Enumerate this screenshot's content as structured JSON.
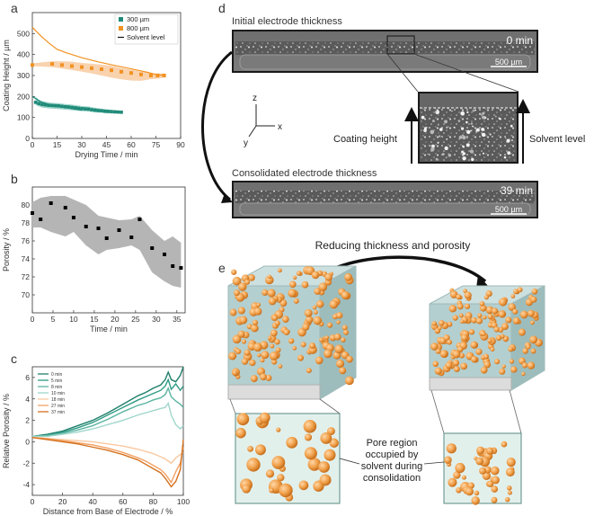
{
  "panels": {
    "a": "a",
    "b": "b",
    "c": "c",
    "d": "d",
    "e": "e"
  },
  "colors": {
    "teal": "#1f8a78",
    "orange": "#f29222",
    "orange_band": "#f7c79a",
    "teal_band": "#8fcfc4",
    "gray_band": "#b5b5b5",
    "sphere": "#f0a04a",
    "box_face": "#a9c9c9",
    "electrode_bg": "#8a8a8a",
    "frame": "#1a1a1a"
  },
  "chart_data": [
    {
      "id": "a",
      "type": "scatter",
      "xlabel": "Drying Time / min",
      "ylabel": "Coating Height / µm",
      "xlim": [
        0,
        90
      ],
      "ylim": [
        0,
        600
      ],
      "xticks": [
        0,
        15,
        30,
        45,
        60,
        75,
        90
      ],
      "yticks": [
        0,
        100,
        200,
        300,
        400,
        500
      ],
      "legend": [
        "300 µm",
        "800 µm",
        "Solvent level"
      ],
      "legend_position": "top-right",
      "series": [
        {
          "name": "300 µm",
          "marker": "square",
          "color": "#1f8a78",
          "x": [
            2,
            4,
            6,
            8,
            10,
            12,
            14,
            16,
            18,
            20,
            22,
            24,
            26,
            28,
            30,
            32,
            34,
            36,
            38,
            40,
            42,
            44,
            46,
            48,
            50,
            52,
            54
          ],
          "y": [
            172,
            166,
            162,
            160,
            158,
            157,
            156,
            155,
            153,
            151,
            150,
            148,
            146,
            144,
            142,
            141,
            140,
            137,
            135,
            133,
            132,
            130,
            129,
            128,
            127,
            126,
            125
          ],
          "band_lower": [
            160,
            152,
            147,
            145,
            143,
            142,
            141,
            140,
            139,
            137,
            136,
            134,
            133,
            131,
            130,
            129,
            128,
            126,
            124,
            123,
            122,
            120,
            119,
            119,
            118,
            118,
            118
          ],
          "band_upper": [
            200,
            185,
            178,
            175,
            172,
            170,
            169,
            168,
            166,
            164,
            163,
            161,
            159,
            157,
            155,
            153,
            152,
            149,
            147,
            144,
            142,
            140,
            138,
            136,
            134,
            133,
            132
          ]
        },
        {
          "name": "800 µm",
          "marker": "square",
          "color": "#f29222",
          "x": [
            0,
            12,
            18,
            24,
            30,
            36,
            42,
            48,
            54,
            60,
            66,
            72,
            76,
            80
          ],
          "y": [
            350,
            355,
            350,
            345,
            340,
            335,
            330,
            325,
            318,
            312,
            305,
            300,
            300,
            300
          ],
          "band_lower": [
            345,
            340,
            333,
            326,
            318,
            310,
            300,
            290,
            282,
            276,
            275,
            283,
            285,
            290
          ],
          "band_upper": [
            358,
            368,
            368,
            366,
            360,
            356,
            352,
            346,
            336,
            328,
            318,
            310,
            310,
            310
          ]
        },
        {
          "name": "Solvent level",
          "type": "line",
          "color": "#f29222",
          "x": [
            0,
            5,
            10,
            15,
            20,
            30,
            40,
            50,
            60,
            70,
            75,
            80
          ],
          "y": [
            530,
            490,
            455,
            425,
            410,
            385,
            365,
            348,
            332,
            315,
            305,
            300
          ]
        },
        {
          "name": "Solvent level 300",
          "type": "line",
          "color": "#1f8a78",
          "x": [
            0,
            5,
            10,
            15,
            20,
            25,
            30
          ],
          "y": [
            200,
            175,
            162,
            155,
            148,
            141,
            135
          ]
        }
      ]
    },
    {
      "id": "b",
      "type": "scatter",
      "xlabel": "Time / min",
      "ylabel": "Porosity / %",
      "xlim": [
        0,
        37
      ],
      "ylim": [
        68,
        82
      ],
      "xticks": [
        0,
        5,
        10,
        15,
        20,
        25,
        30,
        35
      ],
      "yticks": [
        70,
        72,
        74,
        76,
        78,
        80
      ],
      "series": [
        {
          "name": "Porosity",
          "marker": "square",
          "color": "#000000",
          "x": [
            0,
            2,
            4.5,
            8,
            10,
            13,
            16,
            18,
            21,
            24,
            26,
            29,
            32,
            34,
            36
          ],
          "y": [
            79.1,
            78.4,
            80.2,
            79.7,
            78.6,
            77.6,
            77.4,
            76.3,
            77.2,
            76.4,
            78.4,
            75.2,
            74.5,
            73.2,
            73.0
          ],
          "band_lower": [
            77.5,
            77.5,
            77.0,
            76.5,
            77.0,
            75.5,
            74.5,
            75.0,
            75.2,
            75.5,
            75.0,
            72.5,
            71.5,
            71.0,
            70.8
          ],
          "band_upper": [
            80.3,
            80.8,
            81.0,
            81.0,
            80.6,
            80.0,
            78.8,
            78.6,
            78.3,
            78.4,
            78.8,
            77.2,
            76.0,
            76.5,
            75.8
          ]
        }
      ]
    },
    {
      "id": "c",
      "type": "line",
      "xlabel": "Distance from Base of Electrode / %",
      "ylabel": "Relative Porosity / %",
      "xlim": [
        0,
        100
      ],
      "ylim": [
        -5,
        7
      ],
      "xticks": [
        0,
        20,
        40,
        60,
        80,
        100
      ],
      "yticks": [
        -4,
        -2,
        0,
        2,
        4,
        6
      ],
      "legend": [
        "0 min",
        "5 min",
        "8 min",
        "10 min",
        "18 min",
        "27 min",
        "37 min"
      ],
      "legend_position": "top-left",
      "x": [
        0,
        10,
        20,
        30,
        40,
        50,
        60,
        70,
        75,
        80,
        85,
        88,
        90,
        92,
        95,
        98,
        100
      ],
      "series": [
        {
          "name": "0 min",
          "color": "#1f7f6c",
          "values": [
            0.5,
            0.7,
            1.0,
            1.5,
            2.0,
            2.7,
            3.5,
            4.3,
            4.6,
            5.0,
            5.3,
            5.8,
            6.5,
            5.8,
            5.6,
            6.2,
            7.0
          ]
        },
        {
          "name": "5 min",
          "color": "#2f9a84",
          "values": [
            0.5,
            0.6,
            0.9,
            1.3,
            1.8,
            2.5,
            3.2,
            3.9,
            4.2,
            4.5,
            4.8,
            5.2,
            5.8,
            4.9,
            5.4,
            4.8,
            5.2
          ]
        },
        {
          "name": "8 min",
          "color": "#5ab4a1",
          "values": [
            0.5,
            0.6,
            0.8,
            1.1,
            1.5,
            2.1,
            2.8,
            3.4,
            3.6,
            3.9,
            4.1,
            4.4,
            5.0,
            4.2,
            3.8,
            3.5,
            3.2
          ]
        },
        {
          "name": "10 min",
          "color": "#9fd6cb",
          "values": [
            0.5,
            0.5,
            0.7,
            0.9,
            1.2,
            1.6,
            2.0,
            2.5,
            2.7,
            2.9,
            3.1,
            3.2,
            3.6,
            2.5,
            1.6,
            1.2,
            1.5
          ]
        },
        {
          "name": "18 min",
          "color": "#f9c8a0",
          "values": [
            0.4,
            0.3,
            0.2,
            0.1,
            0.0,
            -0.2,
            -0.4,
            -0.7,
            -0.9,
            -1.1,
            -1.4,
            -1.6,
            -1.8,
            -2.0,
            -1.5,
            -1.2,
            -1.0
          ]
        },
        {
          "name": "27 min",
          "color": "#f3a062",
          "values": [
            0.4,
            0.3,
            0.1,
            -0.1,
            -0.3,
            -0.6,
            -1.0,
            -1.5,
            -1.8,
            -2.2,
            -2.6,
            -3.0,
            -3.4,
            -3.8,
            -2.8,
            -2.0,
            -0.5
          ]
        },
        {
          "name": "37 min",
          "color": "#d4711f",
          "values": [
            0.4,
            0.2,
            0.0,
            -0.2,
            -0.5,
            -0.8,
            -1.2,
            -1.7,
            -2.1,
            -2.5,
            -2.9,
            -3.4,
            -3.8,
            -4.2,
            -3.7,
            -2.6,
            0.2
          ]
        }
      ]
    }
  ],
  "panel_d": {
    "top_title": "Initial electrode thickness",
    "top_time": "0 min",
    "top_scale": "500 µm",
    "bottom_title": "Consolidated electrode thickness",
    "bottom_time": "39 min",
    "bottom_scale": "500 µm",
    "axis_z": "z",
    "axis_x": "x",
    "axis_y": "y",
    "coating_height": "Coating height",
    "solvent_level": "Solvent level"
  },
  "panel_e": {
    "arrow_label": "Reducing thickness and porosity",
    "pore_label_line1": "Pore region",
    "pore_label_line2": "occupied by",
    "pore_label_line3": "solvent during",
    "pore_label_line4": "consolidation"
  }
}
